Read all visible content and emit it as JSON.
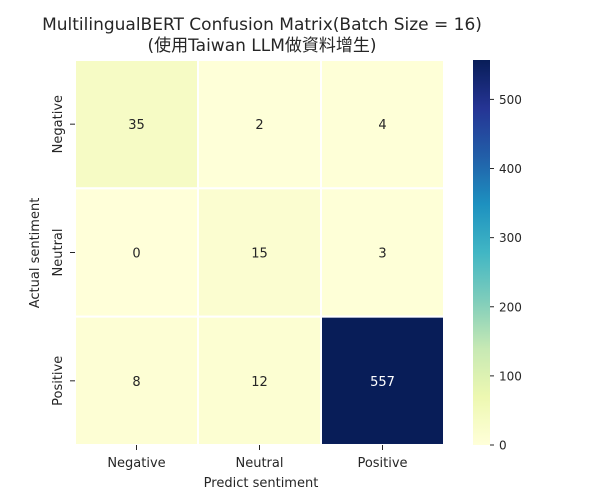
{
  "chart_data": {
    "type": "heatmap",
    "title": "MultilingualBERT Confusion Matrix(Batch Size = 16)",
    "subtitle": "(使用Taiwan LLM做資料增生)",
    "xlabel": "Predict sentiment",
    "ylabel": "Actual sentiment",
    "x_categories": [
      "Negative",
      "Neutral",
      "Positive"
    ],
    "y_categories": [
      "Negative",
      "Neutral",
      "Positive"
    ],
    "values": [
      [
        35,
        2,
        4
      ],
      [
        0,
        15,
        3
      ],
      [
        8,
        12,
        557
      ]
    ],
    "colorbar": {
      "colormap": "YlGnBu",
      "range": [
        0,
        557
      ],
      "ticks": [
        0,
        100,
        200,
        300,
        400,
        500
      ]
    },
    "annotations": true
  }
}
